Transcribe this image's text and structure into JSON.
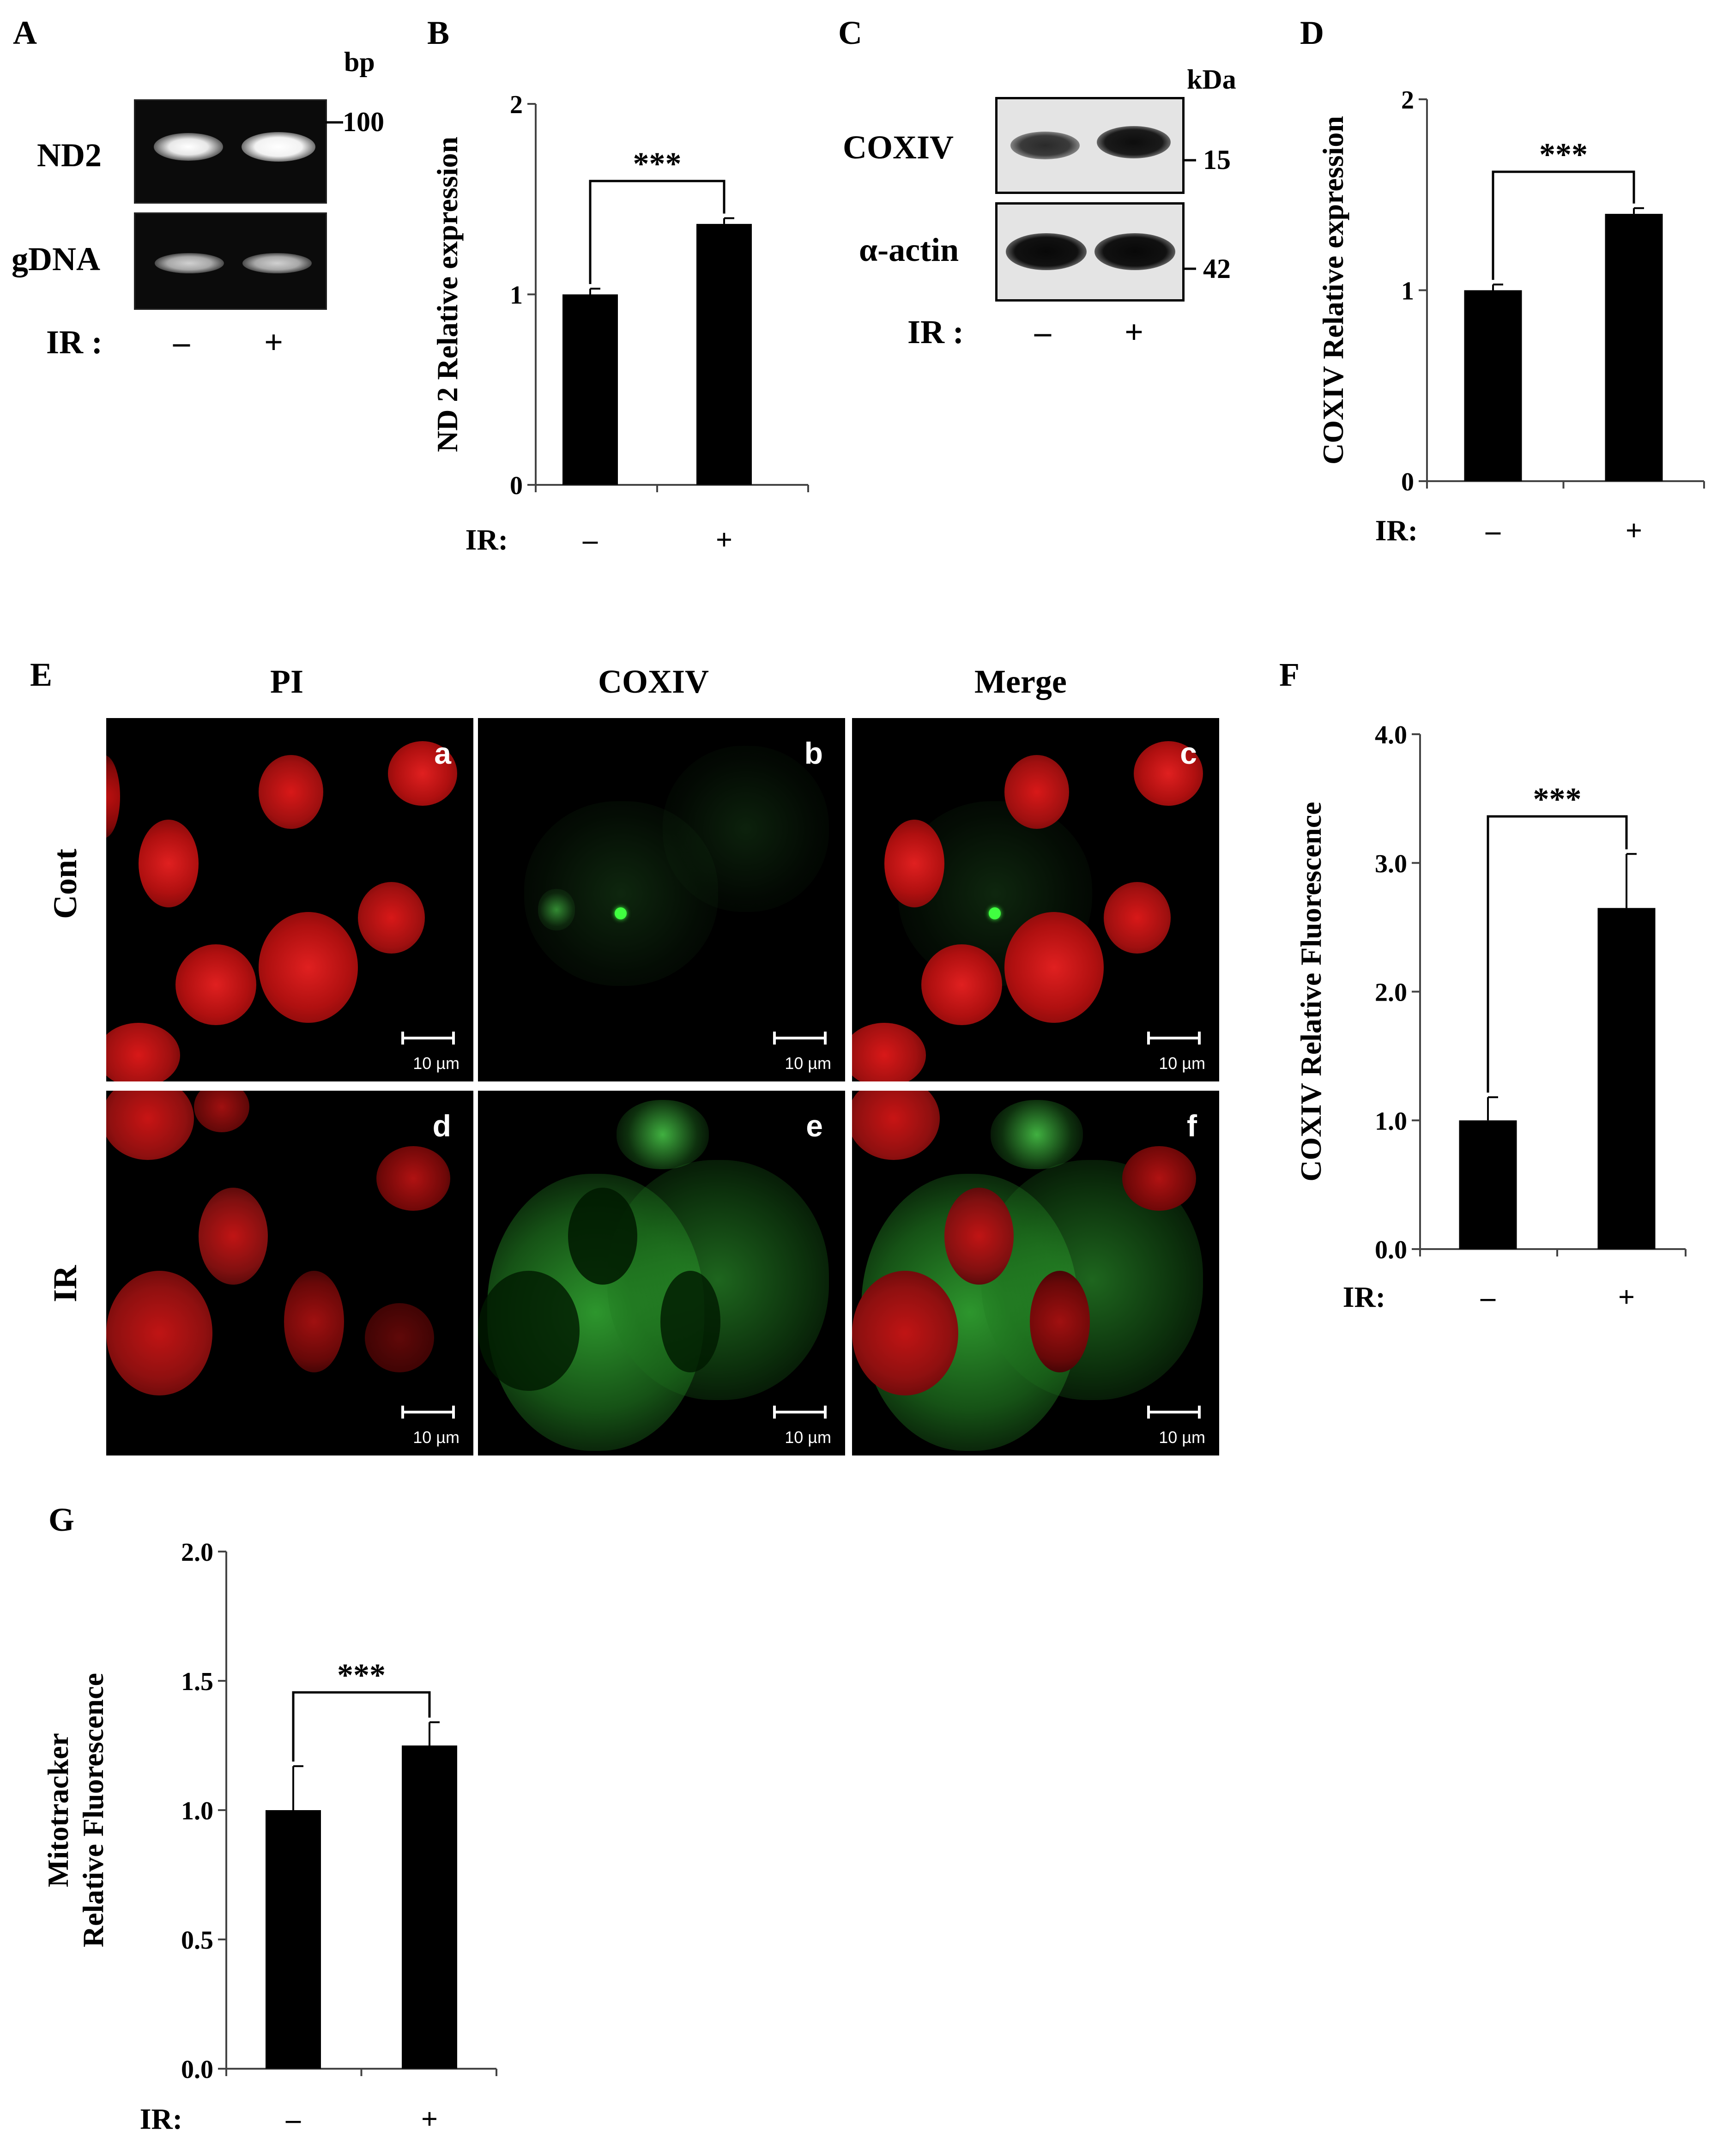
{
  "panels": {
    "A": "A",
    "B": "B",
    "C": "C",
    "D": "D",
    "E": "E",
    "F": "F",
    "G": "G"
  },
  "panel_a": {
    "unit": "bp",
    "marker": "100",
    "rows": [
      "ND2",
      "gDNA"
    ],
    "ir_label": "IR :",
    "minus": "–",
    "plus": "+"
  },
  "panel_c": {
    "unit": "kDa",
    "rows": [
      "COXIV",
      "α-actin"
    ],
    "markers": [
      "15",
      "42"
    ],
    "ir_label": "IR :",
    "minus": "–",
    "plus": "+"
  },
  "panel_e": {
    "columns": [
      "PI",
      "COXIV",
      "Merge"
    ],
    "rows": [
      "Cont",
      "IR"
    ],
    "letters": [
      "a",
      "b",
      "c",
      "d",
      "e",
      "f"
    ],
    "scale": "10 µm"
  },
  "colors": {
    "pi": "#d01010",
    "coxiv": "#30d030",
    "bar": "#000000"
  },
  "chart_data": [
    {
      "id": "B",
      "type": "bar",
      "categories": [
        "–",
        "+"
      ],
      "values": [
        1.0,
        1.37
      ],
      "errors": [
        0.03,
        0.03
      ],
      "ylim": [
        0,
        2
      ],
      "yticks": [
        "0",
        "1",
        "2"
      ],
      "ylabel": "ND 2 Relative expression",
      "xlabel": "IR:",
      "annotation": "***"
    },
    {
      "id": "D",
      "type": "bar",
      "categories": [
        "–",
        "+"
      ],
      "values": [
        1.0,
        1.4
      ],
      "errors": [
        0.03,
        0.03
      ],
      "ylim": [
        0,
        2
      ],
      "yticks": [
        "0",
        "1",
        "2"
      ],
      "ylabel": "COXIV Relative expression",
      "xlabel": "IR:",
      "annotation": "***"
    },
    {
      "id": "F",
      "type": "bar",
      "categories": [
        "–",
        "+"
      ],
      "values": [
        1.0,
        2.65
      ],
      "errors": [
        0.18,
        0.42
      ],
      "ylim": [
        0,
        4.0
      ],
      "yticks": [
        "0.0",
        "1.0",
        "2.0",
        "3.0",
        "4.0"
      ],
      "ylabel": "COXIV Relative Fluorescence",
      "xlabel": "IR:",
      "annotation": "***"
    },
    {
      "id": "G",
      "type": "bar",
      "categories": [
        "–",
        "+"
      ],
      "values": [
        1.0,
        1.25
      ],
      "errors": [
        0.17,
        0.09
      ],
      "ylim": [
        0,
        2.0
      ],
      "yticks": [
        "0.0",
        "0.5",
        "1.0",
        "1.5",
        "2.0"
      ],
      "ylabel": [
        "Mitotracker",
        "Relative Fluorescence"
      ],
      "xlabel": "IR:",
      "annotation": "***"
    }
  ]
}
